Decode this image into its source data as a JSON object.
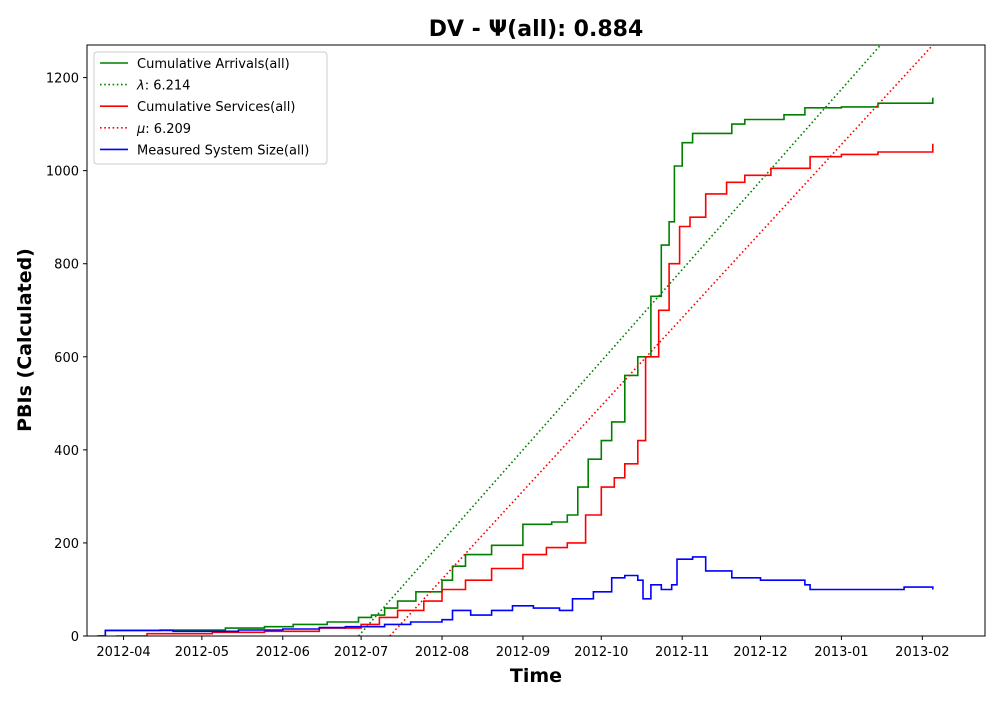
{
  "chart_data": {
    "type": "line",
    "title": "DV -  Ψ(all): 0.884",
    "xlabel": "Time",
    "ylabel": "PBIs (Calculated)",
    "x_is_date": true,
    "xlim": [
      "2012-03-18",
      "2013-02-25"
    ],
    "ylim": [
      0,
      1270
    ],
    "x_ticks": [
      "2012-04-01",
      "2012-05-01",
      "2012-06-01",
      "2012-07-01",
      "2012-08-01",
      "2012-09-01",
      "2012-10-01",
      "2012-11-01",
      "2012-12-01",
      "2013-01-01",
      "2013-02-01"
    ],
    "x_tick_labels": [
      "2012-04",
      "2012-05",
      "2012-06",
      "2012-07",
      "2012-08",
      "2012-09",
      "2012-10",
      "2012-11",
      "2012-12",
      "2013-01",
      "2013-02"
    ],
    "y_ticks": [
      0,
      200,
      400,
      600,
      800,
      1000,
      1200
    ],
    "y_tick_labels": [
      "0",
      "200",
      "400",
      "600",
      "800",
      "1000",
      "1200"
    ],
    "grid": false,
    "legend_position": "top-left",
    "series": [
      {
        "name": "Cumulative Arrivals(all)",
        "label_main": "Cumulative Arrivals(all)",
        "label_sym": "",
        "color": "#008000",
        "style": "solid",
        "step": true,
        "points": [
          [
            "2012-03-22",
            0
          ],
          [
            "2012-03-25",
            12
          ],
          [
            "2012-04-15",
            13
          ],
          [
            "2012-05-10",
            17
          ],
          [
            "2012-05-25",
            20
          ],
          [
            "2012-06-05",
            25
          ],
          [
            "2012-06-18",
            30
          ],
          [
            "2012-06-30",
            40
          ],
          [
            "2012-07-05",
            45
          ],
          [
            "2012-07-10",
            60
          ],
          [
            "2012-07-15",
            75
          ],
          [
            "2012-07-22",
            95
          ],
          [
            "2012-08-01",
            120
          ],
          [
            "2012-08-05",
            150
          ],
          [
            "2012-08-10",
            175
          ],
          [
            "2012-08-20",
            195
          ],
          [
            "2012-09-01",
            240
          ],
          [
            "2012-09-12",
            245
          ],
          [
            "2012-09-18",
            260
          ],
          [
            "2012-09-22",
            320
          ],
          [
            "2012-09-26",
            380
          ],
          [
            "2012-10-01",
            420
          ],
          [
            "2012-10-05",
            460
          ],
          [
            "2012-10-10",
            560
          ],
          [
            "2012-10-15",
            600
          ],
          [
            "2012-10-20",
            730
          ],
          [
            "2012-10-24",
            840
          ],
          [
            "2012-10-27",
            890
          ],
          [
            "2012-10-29",
            1010
          ],
          [
            "2012-11-01",
            1060
          ],
          [
            "2012-11-05",
            1080
          ],
          [
            "2012-11-20",
            1100
          ],
          [
            "2012-11-25",
            1110
          ],
          [
            "2012-12-10",
            1120
          ],
          [
            "2012-12-18",
            1135
          ],
          [
            "2013-01-01",
            1137
          ],
          [
            "2013-01-15",
            1145
          ],
          [
            "2013-02-05",
            1157
          ]
        ]
      },
      {
        "name": "λ: 6.214",
        "label_main": "",
        "label_sym": "λ",
        "label_value": ": 6.214",
        "color": "#008000",
        "style": "dotted",
        "step": false,
        "points": [
          [
            "2012-06-30",
            0
          ],
          [
            "2013-01-16",
            1270
          ]
        ]
      },
      {
        "name": "Cumulative Services(all)",
        "label_main": "Cumulative Services(all)",
        "label_sym": "",
        "color": "#ff0000",
        "style": "solid",
        "step": true,
        "points": [
          [
            "2012-03-29",
            0
          ],
          [
            "2012-04-10",
            5
          ],
          [
            "2012-05-05",
            8
          ],
          [
            "2012-05-25",
            10
          ],
          [
            "2012-06-15",
            17
          ],
          [
            "2012-07-01",
            25
          ],
          [
            "2012-07-08",
            40
          ],
          [
            "2012-07-15",
            55
          ],
          [
            "2012-07-25",
            75
          ],
          [
            "2012-08-01",
            100
          ],
          [
            "2012-08-10",
            120
          ],
          [
            "2012-08-20",
            145
          ],
          [
            "2012-09-01",
            175
          ],
          [
            "2012-09-10",
            190
          ],
          [
            "2012-09-18",
            200
          ],
          [
            "2012-09-25",
            260
          ],
          [
            "2012-10-01",
            320
          ],
          [
            "2012-10-06",
            340
          ],
          [
            "2012-10-10",
            370
          ],
          [
            "2012-10-15",
            420
          ],
          [
            "2012-10-18",
            600
          ],
          [
            "2012-10-23",
            700
          ],
          [
            "2012-10-27",
            800
          ],
          [
            "2012-10-31",
            880
          ],
          [
            "2012-11-04",
            900
          ],
          [
            "2012-11-10",
            950
          ],
          [
            "2012-11-18",
            975
          ],
          [
            "2012-11-25",
            990
          ],
          [
            "2012-12-05",
            1005
          ],
          [
            "2012-12-20",
            1030
          ],
          [
            "2013-01-01",
            1035
          ],
          [
            "2013-01-15",
            1040
          ],
          [
            "2013-02-05",
            1058
          ]
        ]
      },
      {
        "name": "μ: 6.209",
        "label_main": "",
        "label_sym": "μ",
        "label_value": ": 6.209",
        "color": "#ff0000",
        "style": "dotted",
        "step": false,
        "points": [
          [
            "2012-07-12",
            0
          ],
          [
            "2013-02-05",
            1270
          ]
        ]
      },
      {
        "name": "Measured System Size(all)",
        "label_main": "Measured System Size(all)",
        "label_sym": "",
        "color": "#0000ff",
        "style": "solid",
        "step": true,
        "points": [
          [
            "2012-03-22",
            0
          ],
          [
            "2012-03-25",
            12
          ],
          [
            "2012-04-20",
            10
          ],
          [
            "2012-05-15",
            13
          ],
          [
            "2012-06-01",
            15
          ],
          [
            "2012-06-15",
            18
          ],
          [
            "2012-06-25",
            20
          ],
          [
            "2012-07-10",
            25
          ],
          [
            "2012-07-20",
            30
          ],
          [
            "2012-08-01",
            35
          ],
          [
            "2012-08-05",
            55
          ],
          [
            "2012-08-12",
            45
          ],
          [
            "2012-08-20",
            55
          ],
          [
            "2012-08-28",
            65
          ],
          [
            "2012-09-05",
            60
          ],
          [
            "2012-09-15",
            55
          ],
          [
            "2012-09-20",
            80
          ],
          [
            "2012-09-28",
            95
          ],
          [
            "2012-10-05",
            125
          ],
          [
            "2012-10-10",
            130
          ],
          [
            "2012-10-15",
            120
          ],
          [
            "2012-10-17",
            80
          ],
          [
            "2012-10-20",
            110
          ],
          [
            "2012-10-24",
            100
          ],
          [
            "2012-10-28",
            110
          ],
          [
            "2012-10-30",
            165
          ],
          [
            "2012-11-05",
            170
          ],
          [
            "2012-11-10",
            140
          ],
          [
            "2012-11-20",
            125
          ],
          [
            "2012-12-01",
            120
          ],
          [
            "2012-12-18",
            110
          ],
          [
            "2012-12-20",
            100
          ],
          [
            "2013-01-10",
            100
          ],
          [
            "2013-01-25",
            105
          ],
          [
            "2013-02-05",
            100
          ]
        ]
      }
    ]
  }
}
